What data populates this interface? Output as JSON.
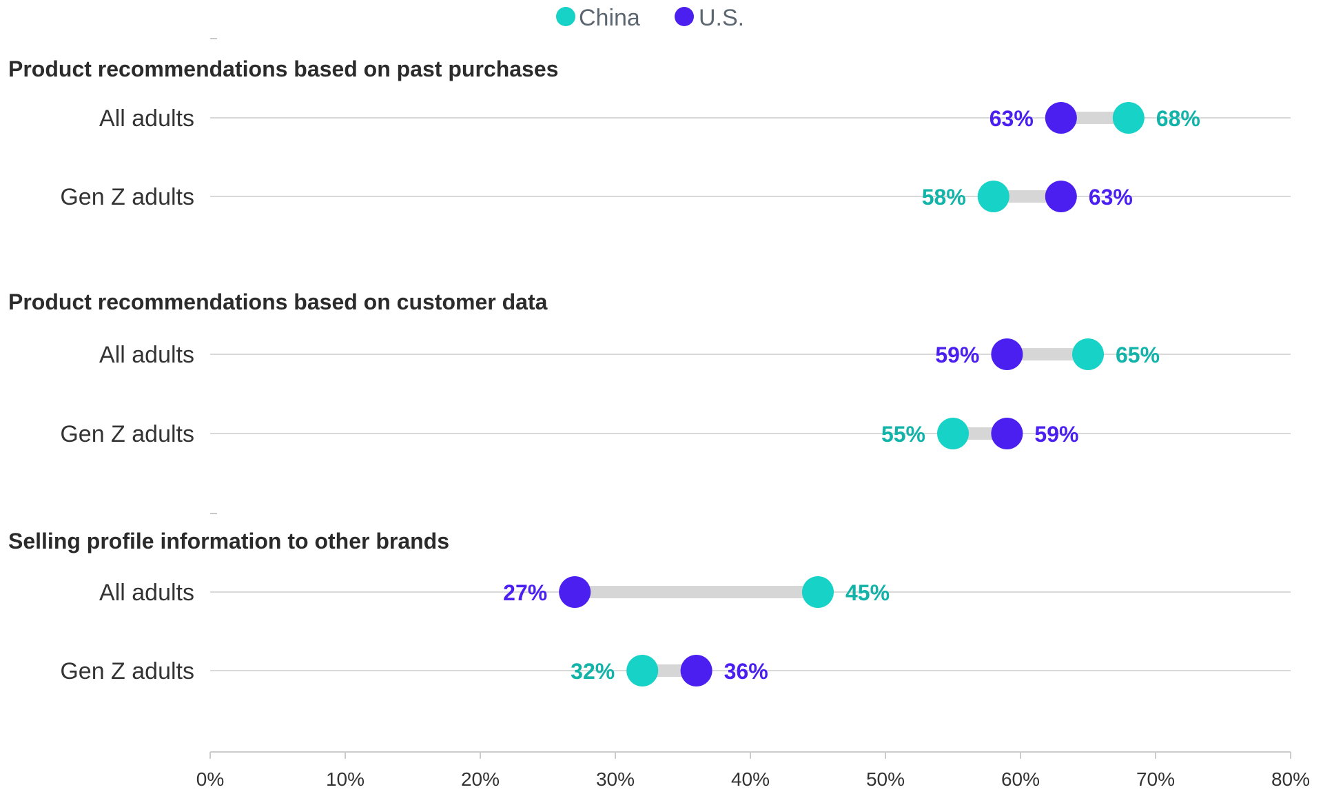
{
  "chart_data": {
    "type": "dumbbell",
    "title": "",
    "xlabel": "",
    "ylabel": "",
    "xlim": [
      0,
      80
    ],
    "x_ticks": [
      "0%",
      "10%",
      "20%",
      "30%",
      "40%",
      "50%",
      "60%",
      "70%",
      "80%"
    ],
    "grid": true,
    "legend_position": "top-center",
    "series": [
      {
        "name": "China",
        "color": "#16d2c7",
        "label_color": "#12b3a8"
      },
      {
        "name": "U.S.",
        "color": "#4a1ff0",
        "label_color": "#4a1ff0"
      }
    ],
    "groups": [
      {
        "title": "Product recommendations based on past purchases",
        "rows": [
          {
            "label": "All adults",
            "china": 68,
            "us": 63,
            "china_label": "68%",
            "us_label": "63%"
          },
          {
            "label": "Gen Z adults",
            "china": 58,
            "us": 63,
            "china_label": "58%",
            "us_label": "63%"
          }
        ]
      },
      {
        "title": "Product recommendations based on customer data",
        "rows": [
          {
            "label": "All adults",
            "china": 65,
            "us": 59,
            "china_label": "65%",
            "us_label": "59%"
          },
          {
            "label": "Gen Z adults",
            "china": 55,
            "us": 59,
            "china_label": "55%",
            "us_label": "59%"
          }
        ]
      },
      {
        "title": "Selling profile information to other brands",
        "rows": [
          {
            "label": "All adults",
            "china": 45,
            "us": 27,
            "china_label": "45%",
            "us_label": "27%"
          },
          {
            "label": "Gen Z adults",
            "china": 32,
            "us": 36,
            "china_label": "32%",
            "us_label": "36%"
          }
        ]
      }
    ]
  }
}
